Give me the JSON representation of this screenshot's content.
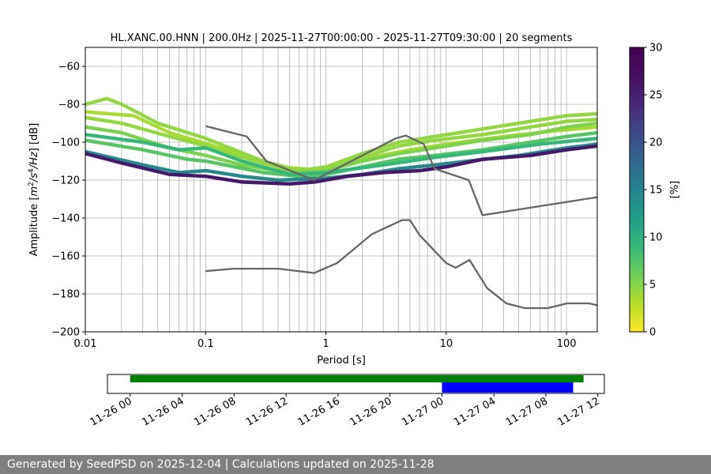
{
  "chart_data": [
    {
      "type": "heatmap",
      "title": "HL.XANC.00.HNN | 200.0Hz | 2025-11-27T00:00:00 - 2025-11-27T09:30:00 | 20 segments",
      "xlabel": "Period [s]",
      "ylabel_parts": [
        "Amplitude [",
        "m",
        "2",
        "/s",
        "4",
        "/Hz",
        "] [dB]"
      ],
      "x_scale": "log",
      "xlim": [
        0.01,
        180
      ],
      "ylim": [
        -200,
        -50
      ],
      "x_ticks": [
        0.01,
        0.1,
        1,
        10,
        100
      ],
      "x_tick_labels": [
        "0.01",
        "0.1",
        "1",
        "10",
        "100"
      ],
      "y_ticks": [
        -200,
        -180,
        -160,
        -140,
        -120,
        -100,
        -80,
        -60
      ],
      "y_tick_labels": [
        "−200",
        "−180",
        "−160",
        "−140",
        "−120",
        "−100",
        "−80",
        "−60"
      ],
      "grid": true,
      "colorbar": {
        "label": "[%]",
        "range": [
          0,
          30
        ],
        "ticks": [
          0,
          5,
          10,
          15,
          20,
          25,
          30
        ],
        "tick_labels": [
          "0",
          "5",
          "10",
          "15",
          "20",
          "25",
          "30"
        ],
        "colormap": "viridis_r"
      },
      "density_curves": [
        {
          "pct": 28,
          "points": [
            [
              0.01,
              -106
            ],
            [
              0.02,
              -111
            ],
            [
              0.05,
              -117
            ],
            [
              0.1,
              -118
            ],
            [
              0.2,
              -121
            ],
            [
              0.5,
              -122
            ],
            [
              0.8,
              -121
            ],
            [
              1.5,
              -118
            ],
            [
              3,
              -116
            ],
            [
              6,
              -115
            ],
            [
              10,
              -113
            ],
            [
              20,
              -109
            ],
            [
              50,
              -107
            ],
            [
              100,
              -104
            ],
            [
              180,
              -102
            ]
          ]
        },
        {
          "pct": 16,
          "points": [
            [
              0.01,
              -105
            ],
            [
              0.03,
              -112
            ],
            [
              0.06,
              -116
            ],
            [
              0.1,
              -115
            ],
            [
              0.2,
              -118
            ],
            [
              0.4,
              -120
            ],
            [
              1,
              -119
            ],
            [
              2,
              -117
            ],
            [
              4,
              -114
            ],
            [
              8,
              -112
            ],
            [
              15,
              -110
            ],
            [
              40,
              -107
            ],
            [
              100,
              -103
            ],
            [
              180,
              -101
            ]
          ]
        },
        {
          "pct": 8,
          "points": [
            [
              0.01,
              -99
            ],
            [
              0.03,
              -104
            ],
            [
              0.07,
              -109
            ],
            [
              0.1,
              -110
            ],
            [
              0.3,
              -116
            ],
            [
              0.6,
              -118
            ],
            [
              1,
              -117
            ],
            [
              2,
              -113
            ],
            [
              4,
              -109
            ],
            [
              8,
              -107
            ],
            [
              20,
              -104
            ],
            [
              50,
              -100
            ],
            [
              100,
              -97
            ],
            [
              180,
              -95
            ]
          ]
        },
        {
          "pct": 6,
          "points": [
            [
              0.01,
              -92
            ],
            [
              0.02,
              -95
            ],
            [
              0.05,
              -103
            ],
            [
              0.1,
              -107
            ],
            [
              0.2,
              -112
            ],
            [
              0.5,
              -116
            ],
            [
              1,
              -115
            ],
            [
              2,
              -110
            ],
            [
              4,
              -106
            ],
            [
              8,
              -103
            ],
            [
              20,
              -99
            ],
            [
              50,
              -96
            ],
            [
              100,
              -92
            ],
            [
              180,
              -90
            ]
          ]
        },
        {
          "pct": 5,
          "points": [
            [
              0.01,
              -87
            ],
            [
              0.02,
              -90
            ],
            [
              0.05,
              -97
            ],
            [
              0.1,
              -102
            ],
            [
              0.2,
              -108
            ],
            [
              0.5,
              -115
            ],
            [
              1,
              -114
            ],
            [
              2,
              -108
            ],
            [
              4,
              -102
            ],
            [
              8,
              -99
            ],
            [
              20,
              -96
            ],
            [
              50,
              -92
            ],
            [
              100,
              -89
            ],
            [
              180,
              -88
            ]
          ]
        },
        {
          "pct": 5,
          "points": [
            [
              0.01,
              -80
            ],
            [
              0.015,
              -77
            ],
            [
              0.02,
              -80
            ],
            [
              0.04,
              -90
            ],
            [
              0.1,
              -98
            ],
            [
              0.3,
              -110
            ],
            [
              0.6,
              -115
            ],
            [
              1,
              -113
            ],
            [
              2,
              -106
            ],
            [
              4,
              -100
            ],
            [
              8,
              -97
            ],
            [
              20,
              -93
            ],
            [
              50,
              -89
            ],
            [
              100,
              -86
            ],
            [
              180,
              -85
            ]
          ]
        },
        {
          "pct": 10,
          "points": [
            [
              0.01,
              -96
            ],
            [
              0.03,
              -100
            ],
            [
              0.06,
              -104
            ],
            [
              0.1,
              -103
            ],
            [
              0.2,
              -110
            ],
            [
              0.5,
              -117
            ],
            [
              1,
              -116
            ],
            [
              3,
              -112
            ],
            [
              8,
              -108
            ],
            [
              20,
              -105
            ],
            [
              60,
              -101
            ],
            [
              180,
              -98
            ]
          ]
        },
        {
          "pct": 4,
          "points": [
            [
              0.01,
              -84
            ],
            [
              0.025,
              -86
            ],
            [
              0.05,
              -95
            ],
            [
              0.15,
              -104
            ],
            [
              0.4,
              -113
            ],
            [
              1,
              -115
            ],
            [
              2,
              -109
            ],
            [
              5,
              -104
            ],
            [
              10,
              -101
            ],
            [
              30,
              -97
            ],
            [
              80,
              -94
            ],
            [
              180,
              -92
            ]
          ]
        }
      ],
      "reference_curves": [
        {
          "points": [
            [
              0.1,
              -91.5
            ],
            [
              0.22,
              -97
            ],
            [
              0.32,
              -110
            ],
            [
              0.8,
              -120
            ],
            [
              3.8,
              -98
            ],
            [
              4.6,
              -96.5
            ],
            [
              6.5,
              -101
            ],
            [
              8,
              -114
            ],
            [
              15.4,
              -120
            ],
            [
              20,
              -138.5
            ],
            [
              180,
              -129
            ]
          ]
        },
        {
          "points": [
            [
              0.1,
              -168
            ],
            [
              0.17,
              -166.7
            ],
            [
              0.4,
              -166.7
            ],
            [
              0.8,
              -169
            ],
            [
              1.24,
              -163.7
            ],
            [
              2.4,
              -148.6
            ],
            [
              4.3,
              -141.1
            ],
            [
              5.0,
              -141.1
            ],
            [
              6.0,
              -149
            ],
            [
              10,
              -163.8
            ],
            [
              12,
              -166.2
            ],
            [
              15.6,
              -162.1
            ],
            [
              21.9,
              -177
            ],
            [
              31.6,
              -185
            ],
            [
              45,
              -187.5
            ],
            [
              70,
              -187.5
            ],
            [
              101,
              -185
            ],
            [
              154,
              -185
            ],
            [
              180,
              -186
            ]
          ]
        }
      ]
    },
    {
      "type": "timeline",
      "tick_labels": [
        "11-26 00",
        "11-26 04",
        "11-26 08",
        "11-26 12",
        "11-26 16",
        "11-26 20",
        "11-27 00",
        "11-27 04",
        "11-27 08",
        "11-27 12"
      ],
      "tick_hours": [
        0,
        4,
        8,
        12,
        16,
        20,
        24,
        28,
        32,
        36
      ],
      "range_hours": [
        -1.75,
        36.5
      ],
      "bars": [
        {
          "color": "#008000",
          "start_hour": 0.0,
          "end_hour": 34.9,
          "row": "top"
        },
        {
          "color": "#0000ff",
          "start_hour": 24.0,
          "end_hour": 34.1,
          "row": "bottom"
        }
      ]
    }
  ],
  "footer": "Generated by SeedPSD on 2025-12-04 | Calculations updated on 2025-11-28"
}
